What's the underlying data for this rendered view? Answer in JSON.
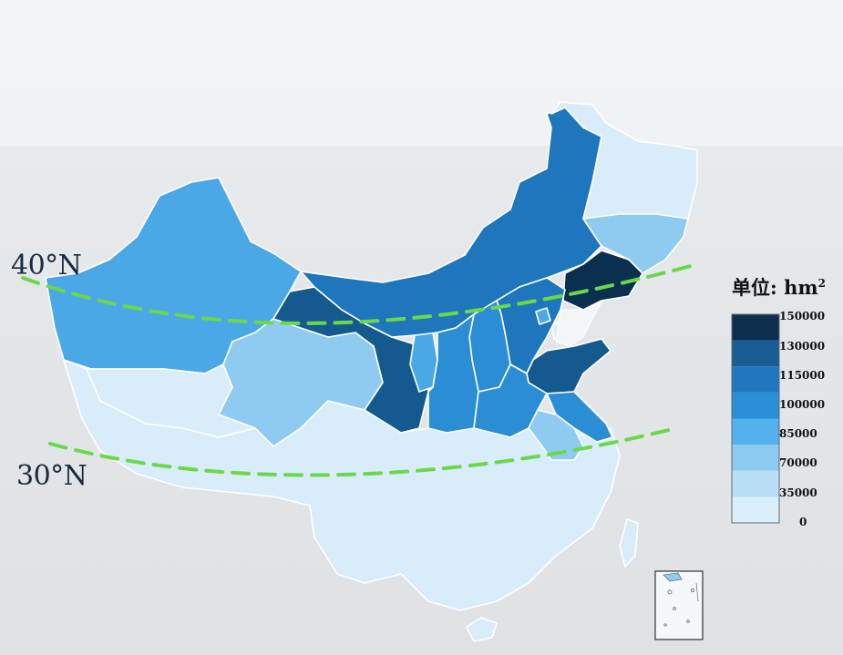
{
  "legend": {
    "title": "单位: hm",
    "title_sup": "2",
    "ticks": [
      "150000",
      "130000",
      "115000",
      "100000",
      "85000",
      "70000",
      "35000",
      "0"
    ],
    "colors": [
      "#0d2f4d",
      "#1a5d92",
      "#1f78bf",
      "#2a8fd6",
      "#52b0ea",
      "#8ccaf1",
      "#b9def6",
      "#dbeffb"
    ]
  },
  "latitude_lines": [
    {
      "label": "40°N"
    },
    {
      "label": "30°N"
    }
  ],
  "choropleth_classes": {
    "darkest": "#0b2f4f",
    "dark": "#155a8f",
    "medium_dark": "#1e76bd",
    "medium": "#2b8ed5",
    "medium_light": "#4aa8e6",
    "light": "#8fcbf0",
    "lightest": "#d8ecfa"
  }
}
